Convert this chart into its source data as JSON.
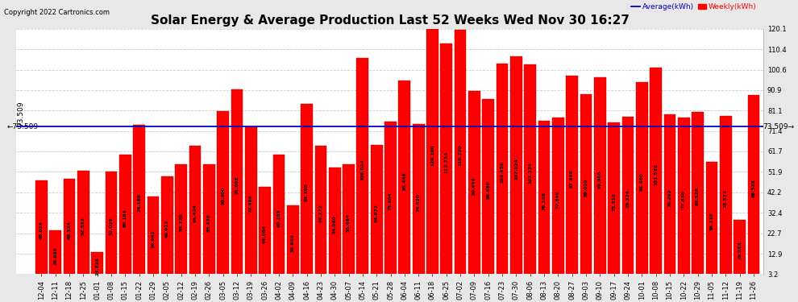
{
  "title": "Solar Energy & Average Production Last 52 Weeks Wed Nov 30 16:27",
  "copyright": "Copyright 2022 Cartronics.com",
  "average_label": "Average(kWh)",
  "weekly_label": "Weekly(kWh)",
  "average_value": 73.509,
  "categories": [
    "12-04",
    "12-11",
    "12-18",
    "12-25",
    "01-01",
    "01-08",
    "01-15",
    "01-22",
    "01-29",
    "02-05",
    "02-12",
    "02-19",
    "02-26",
    "03-05",
    "03-12",
    "03-19",
    "03-26",
    "04-02",
    "04-09",
    "04-16",
    "04-23",
    "04-30",
    "05-07",
    "05-14",
    "05-21",
    "05-28",
    "06-04",
    "06-11",
    "06-18",
    "06-25",
    "07-02",
    "07-09",
    "07-16",
    "07-23",
    "07-30",
    "08-06",
    "08-13",
    "08-20",
    "08-27",
    "09-03",
    "09-10",
    "09-17",
    "09-24",
    "10-01",
    "10-08",
    "10-15",
    "10-22",
    "10-29",
    "11-05",
    "11-12",
    "11-19",
    "11-26"
  ],
  "values": [
    48.024,
    24.084,
    48.524,
    52.552,
    13.828,
    52.028,
    60.184,
    74.188,
    39.992,
    49.912,
    55.72,
    64.424,
    55.476,
    80.9,
    91.096,
    73.696,
    44.864,
    60.288,
    35.92,
    84.296,
    64.272,
    54.08,
    55.464,
    106.024,
    64.672,
    75.904,
    95.448,
    74.62,
    120.1,
    113.224,
    119.72,
    90.464,
    86.68,
    103.656,
    107.024,
    103.224,
    76.128,
    77.84,
    97.648,
    89.02,
    96.908,
    75.616,
    78.224,
    94.64,
    101.536,
    79.292,
    77.636,
    80.528,
    56.716,
    78.572,
    29.088,
    88.528
  ],
  "bar_color": "#ff0000",
  "avg_line_color": "#0000cc",
  "background_color": "#e8e8e8",
  "plot_bg_color": "#ffffff",
  "grid_color": "#cccccc",
  "ylim_min": 3.2,
  "ylim_max": 120.1,
  "yticks": [
    3.2,
    12.9,
    22.7,
    32.4,
    42.2,
    51.9,
    61.7,
    71.4,
    81.1,
    90.9,
    100.6,
    110.4,
    120.1
  ],
  "title_fontsize": 11,
  "tick_fontsize": 6,
  "label_fontsize": 6,
  "copyright_fontsize": 6,
  "value_fontsize": 4.2,
  "avg_fontsize": 6.5
}
